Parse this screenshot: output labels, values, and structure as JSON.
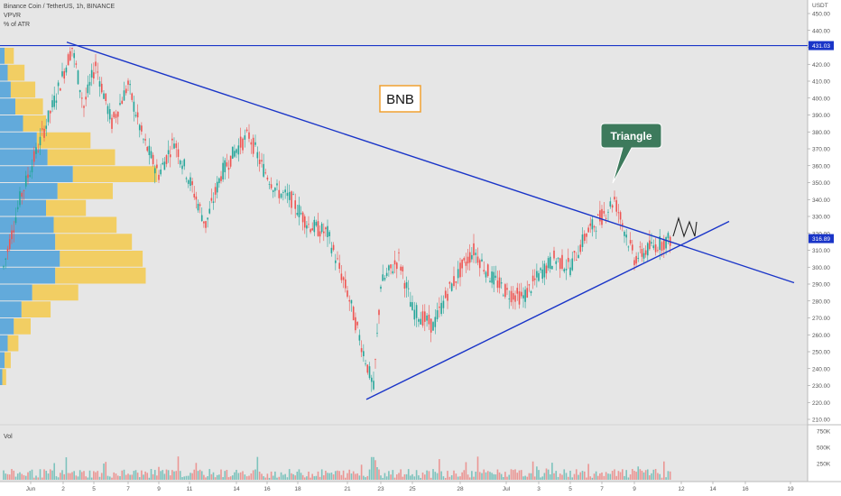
{
  "header": {
    "symbol_line": "Binance Coin / TetherUS, 1h, BINANCE",
    "indicator_1": "VPVR",
    "indicator_2": "% of ATR"
  },
  "price_axis": {
    "currency": "USDT",
    "ticks": [
      "450.00",
      "440.00",
      "430.00",
      "420.00",
      "410.00",
      "400.00",
      "390.00",
      "380.00",
      "370.00",
      "360.00",
      "350.00",
      "340.00",
      "330.00",
      "320.00",
      "310.00",
      "300.00",
      "290.00",
      "280.00",
      "270.00",
      "260.00",
      "250.00",
      "240.00",
      "230.00",
      "220.00",
      "210.00"
    ],
    "resistance_label": "431.03",
    "last_price_label": "316.89"
  },
  "volume_pane": {
    "label": "Vol",
    "ticks": [
      "750K",
      "500K",
      "250K"
    ]
  },
  "date_axis": {
    "ticks": [
      "Jun",
      "2",
      "5",
      "7",
      "9",
      "11",
      "14",
      "16",
      "18",
      "21",
      "23",
      "25",
      "28",
      "Jul",
      "3",
      "5",
      "7",
      "9",
      "12",
      "14",
      "16",
      "19"
    ]
  },
  "annotations": {
    "ticker_box": "BNB",
    "pattern_callout": "Triangle"
  },
  "colors": {
    "background": "#e6e6e6",
    "up_candle": "#26a69a",
    "down_candle": "#ef5350",
    "trendline": "#1a35c8",
    "vpvr_blue": "#4a9fd8",
    "vpvr_yellow": "#f5c842",
    "callout_fill": "#3d7a5c",
    "ticker_border": "#f0a030",
    "last_price_fill": "#1a35c8"
  },
  "chart_data": {
    "type": "candlestick",
    "ylim": [
      210,
      450
    ],
    "resistance_level": 431.03,
    "last_price": 316.89,
    "upper_trendline": [
      [
        "Jun 3",
        432
      ],
      [
        "Jul 19",
        310
      ]
    ],
    "lower_trendline": [
      [
        "Jun 22",
        225
      ],
      [
        "Jul 15",
        326
      ]
    ],
    "price_path": [
      [
        "May 31",
        300
      ],
      [
        "Jun 1",
        340
      ],
      [
        "Jun 2",
        395
      ],
      [
        "Jun 3",
        430
      ],
      [
        "Jun 4",
        395
      ],
      [
        "Jun 5",
        420
      ],
      [
        "Jun 6",
        385
      ],
      [
        "Jun 7",
        408
      ],
      [
        "Jun 8",
        375
      ],
      [
        "Jun 9",
        355
      ],
      [
        "Jun 10",
        375
      ],
      [
        "Jun 11",
        350
      ],
      [
        "Jun 12",
        325
      ],
      [
        "Jun 13",
        355
      ],
      [
        "Jun 14",
        370
      ],
      [
        "Jun 15",
        378
      ],
      [
        "Jun 16",
        360
      ],
      [
        "Jun 17",
        345
      ],
      [
        "Jun 18",
        340
      ],
      [
        "Jun 19",
        325
      ],
      [
        "Jun 20",
        320
      ],
      [
        "Jun 21",
        285
      ],
      [
        "Jun 22",
        228
      ],
      [
        "Jun 23",
        290
      ],
      [
        "Jun 24",
        305
      ],
      [
        "Jun 25",
        275
      ],
      [
        "Jun 26",
        265
      ],
      [
        "Jun 27",
        285
      ],
      [
        "Jun 28",
        298
      ],
      [
        "Jun 29",
        310
      ],
      [
        "Jun 30",
        295
      ],
      [
        "Jul 1",
        285
      ],
      [
        "Jul 2",
        282
      ],
      [
        "Jul 3",
        295
      ],
      [
        "Jul 4",
        305
      ],
      [
        "Jul 5",
        300
      ],
      [
        "Jul 6",
        320
      ],
      [
        "Jul 7",
        330
      ],
      [
        "Jul 8",
        340
      ],
      [
        "Jul 9",
        305
      ],
      [
        "Jul 10",
        312
      ],
      [
        "Jul 11",
        317
      ]
    ],
    "projection_path": [
      [
        "Jul 11",
        317
      ],
      [
        "Jul 12",
        325
      ],
      [
        "Jul 12",
        318
      ],
      [
        "Jul 13",
        325
      ],
      [
        "Jul 13",
        318
      ]
    ],
    "vpvr_profile": [
      {
        "price": 425,
        "buy": 6,
        "sell": 12
      },
      {
        "price": 415,
        "buy": 10,
        "sell": 22
      },
      {
        "price": 405,
        "buy": 14,
        "sell": 32
      },
      {
        "price": 395,
        "buy": 20,
        "sell": 36
      },
      {
        "price": 385,
        "buy": 30,
        "sell": 30
      },
      {
        "price": 375,
        "buy": 48,
        "sell": 70
      },
      {
        "price": 365,
        "buy": 62,
        "sell": 88
      },
      {
        "price": 355,
        "buy": 95,
        "sell": 110
      },
      {
        "price": 345,
        "buy": 75,
        "sell": 72
      },
      {
        "price": 335,
        "buy": 60,
        "sell": 52
      },
      {
        "price": 325,
        "buy": 70,
        "sell": 82
      },
      {
        "price": 315,
        "buy": 72,
        "sell": 100
      },
      {
        "price": 305,
        "buy": 78,
        "sell": 108
      },
      {
        "price": 295,
        "buy": 72,
        "sell": 118
      },
      {
        "price": 285,
        "buy": 42,
        "sell": 60
      },
      {
        "price": 275,
        "buy": 28,
        "sell": 38
      },
      {
        "price": 265,
        "buy": 18,
        "sell": 22
      },
      {
        "price": 255,
        "buy": 10,
        "sell": 14
      },
      {
        "price": 245,
        "buy": 6,
        "sell": 8
      },
      {
        "price": 235,
        "buy": 3,
        "sell": 5
      }
    ]
  }
}
